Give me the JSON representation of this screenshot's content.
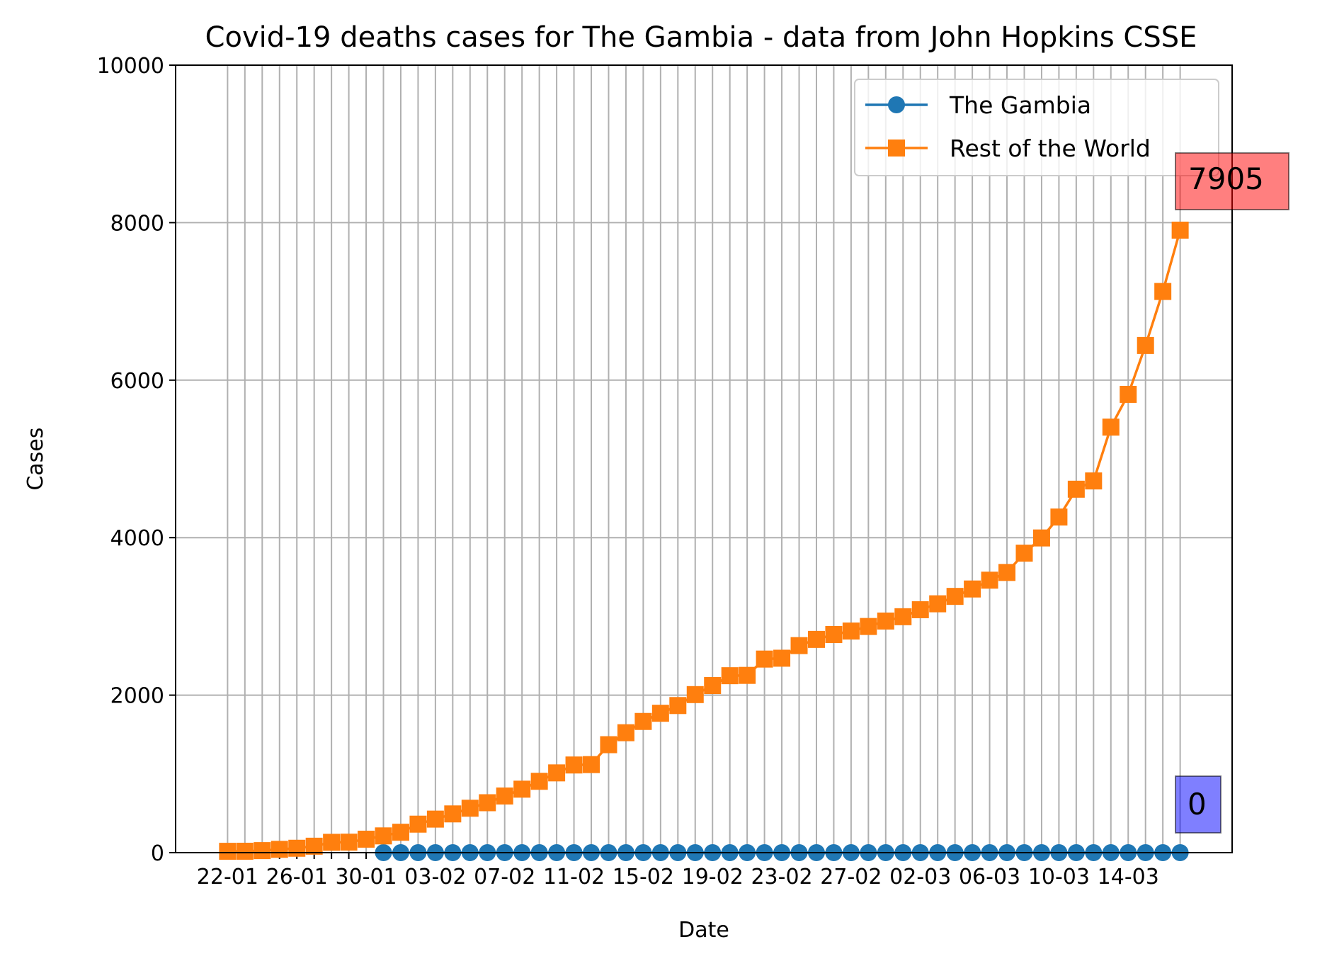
{
  "chart_data": {
    "type": "line",
    "title": "Covid-19 deaths cases for The Gambia - data from John Hopkins CSSE",
    "xlabel": "Date",
    "ylabel": "Cases",
    "ylim": [
      0,
      10000
    ],
    "yticks": [
      0,
      2000,
      4000,
      6000,
      8000,
      10000
    ],
    "xlim": [
      "2020-01-19",
      "2020-03-20"
    ],
    "x": [
      "2020-01-22",
      "2020-01-23",
      "2020-01-24",
      "2020-01-25",
      "2020-01-26",
      "2020-01-27",
      "2020-01-28",
      "2020-01-29",
      "2020-01-30",
      "2020-01-31",
      "2020-02-01",
      "2020-02-02",
      "2020-02-03",
      "2020-02-04",
      "2020-02-05",
      "2020-02-06",
      "2020-02-07",
      "2020-02-08",
      "2020-02-09",
      "2020-02-10",
      "2020-02-11",
      "2020-02-12",
      "2020-02-13",
      "2020-02-14",
      "2020-02-15",
      "2020-02-16",
      "2020-02-17",
      "2020-02-18",
      "2020-02-19",
      "2020-02-20",
      "2020-02-21",
      "2020-02-22",
      "2020-02-23",
      "2020-02-24",
      "2020-02-25",
      "2020-02-26",
      "2020-02-27",
      "2020-02-28",
      "2020-02-29",
      "2020-03-01",
      "2020-03-02",
      "2020-03-03",
      "2020-03-04",
      "2020-03-05",
      "2020-03-06",
      "2020-03-07",
      "2020-03-08",
      "2020-03-09",
      "2020-03-10",
      "2020-03-11",
      "2020-03-12",
      "2020-03-13",
      "2020-03-14",
      "2020-03-15",
      "2020-03-16",
      "2020-03-17"
    ],
    "xtick_labels": [
      "22-01",
      "26-01",
      "30-01",
      "03-02",
      "07-02",
      "11-02",
      "15-02",
      "19-02",
      "23-02",
      "27-02",
      "02-03",
      "06-03",
      "10-03",
      "14-03"
    ],
    "xtick_dates": [
      "2020-01-22",
      "2020-01-26",
      "2020-01-30",
      "2020-02-03",
      "2020-02-07",
      "2020-02-11",
      "2020-02-15",
      "2020-02-19",
      "2020-02-23",
      "2020-02-27",
      "2020-03-02",
      "2020-03-06",
      "2020-03-10",
      "2020-03-14"
    ],
    "grid": true,
    "legend_placement": "upper right",
    "series": [
      {
        "name": "The Gambia",
        "color": "#1f77b4",
        "marker": "circle",
        "start_date": "2020-01-31",
        "values": [
          0,
          0,
          0,
          0,
          0,
          0,
          0,
          0,
          0,
          0,
          0,
          0,
          0,
          0,
          0,
          0,
          0,
          0,
          0,
          0,
          0,
          0,
          0,
          0,
          0,
          0,
          0,
          0,
          0,
          0,
          0,
          0,
          0,
          0,
          0,
          0,
          0,
          0,
          0,
          0,
          0,
          0,
          0,
          0,
          0,
          0,
          0,
          0,
          0,
          0,
          0,
          0,
          0,
          0,
          0,
          0
        ]
      },
      {
        "name": "Rest of the World",
        "color": "#ff7f0e",
        "marker": "square",
        "values": [
          17,
          18,
          26,
          42,
          56,
          82,
          131,
          133,
          171,
          213,
          259,
          362,
          426,
          492,
          564,
          634,
          719,
          806,
          906,
          1013,
          1113,
          1118,
          1371,
          1523,
          1666,
          1770,
          1868,
          2007,
          2122,
          2247,
          2251,
          2458,
          2469,
          2629,
          2708,
          2770,
          2814,
          2872,
          2941,
          2996,
          3085,
          3160,
          3254,
          3348,
          3460,
          3558,
          3803,
          3996,
          4262,
          4615,
          4720,
          5404,
          5819,
          6440,
          7126,
          7905
        ]
      }
    ],
    "annotations": [
      {
        "text": "7905",
        "series": "Rest of the World",
        "color": "#ff0000"
      },
      {
        "text": "0",
        "series": "The Gambia",
        "color": "#0000ff"
      }
    ]
  }
}
